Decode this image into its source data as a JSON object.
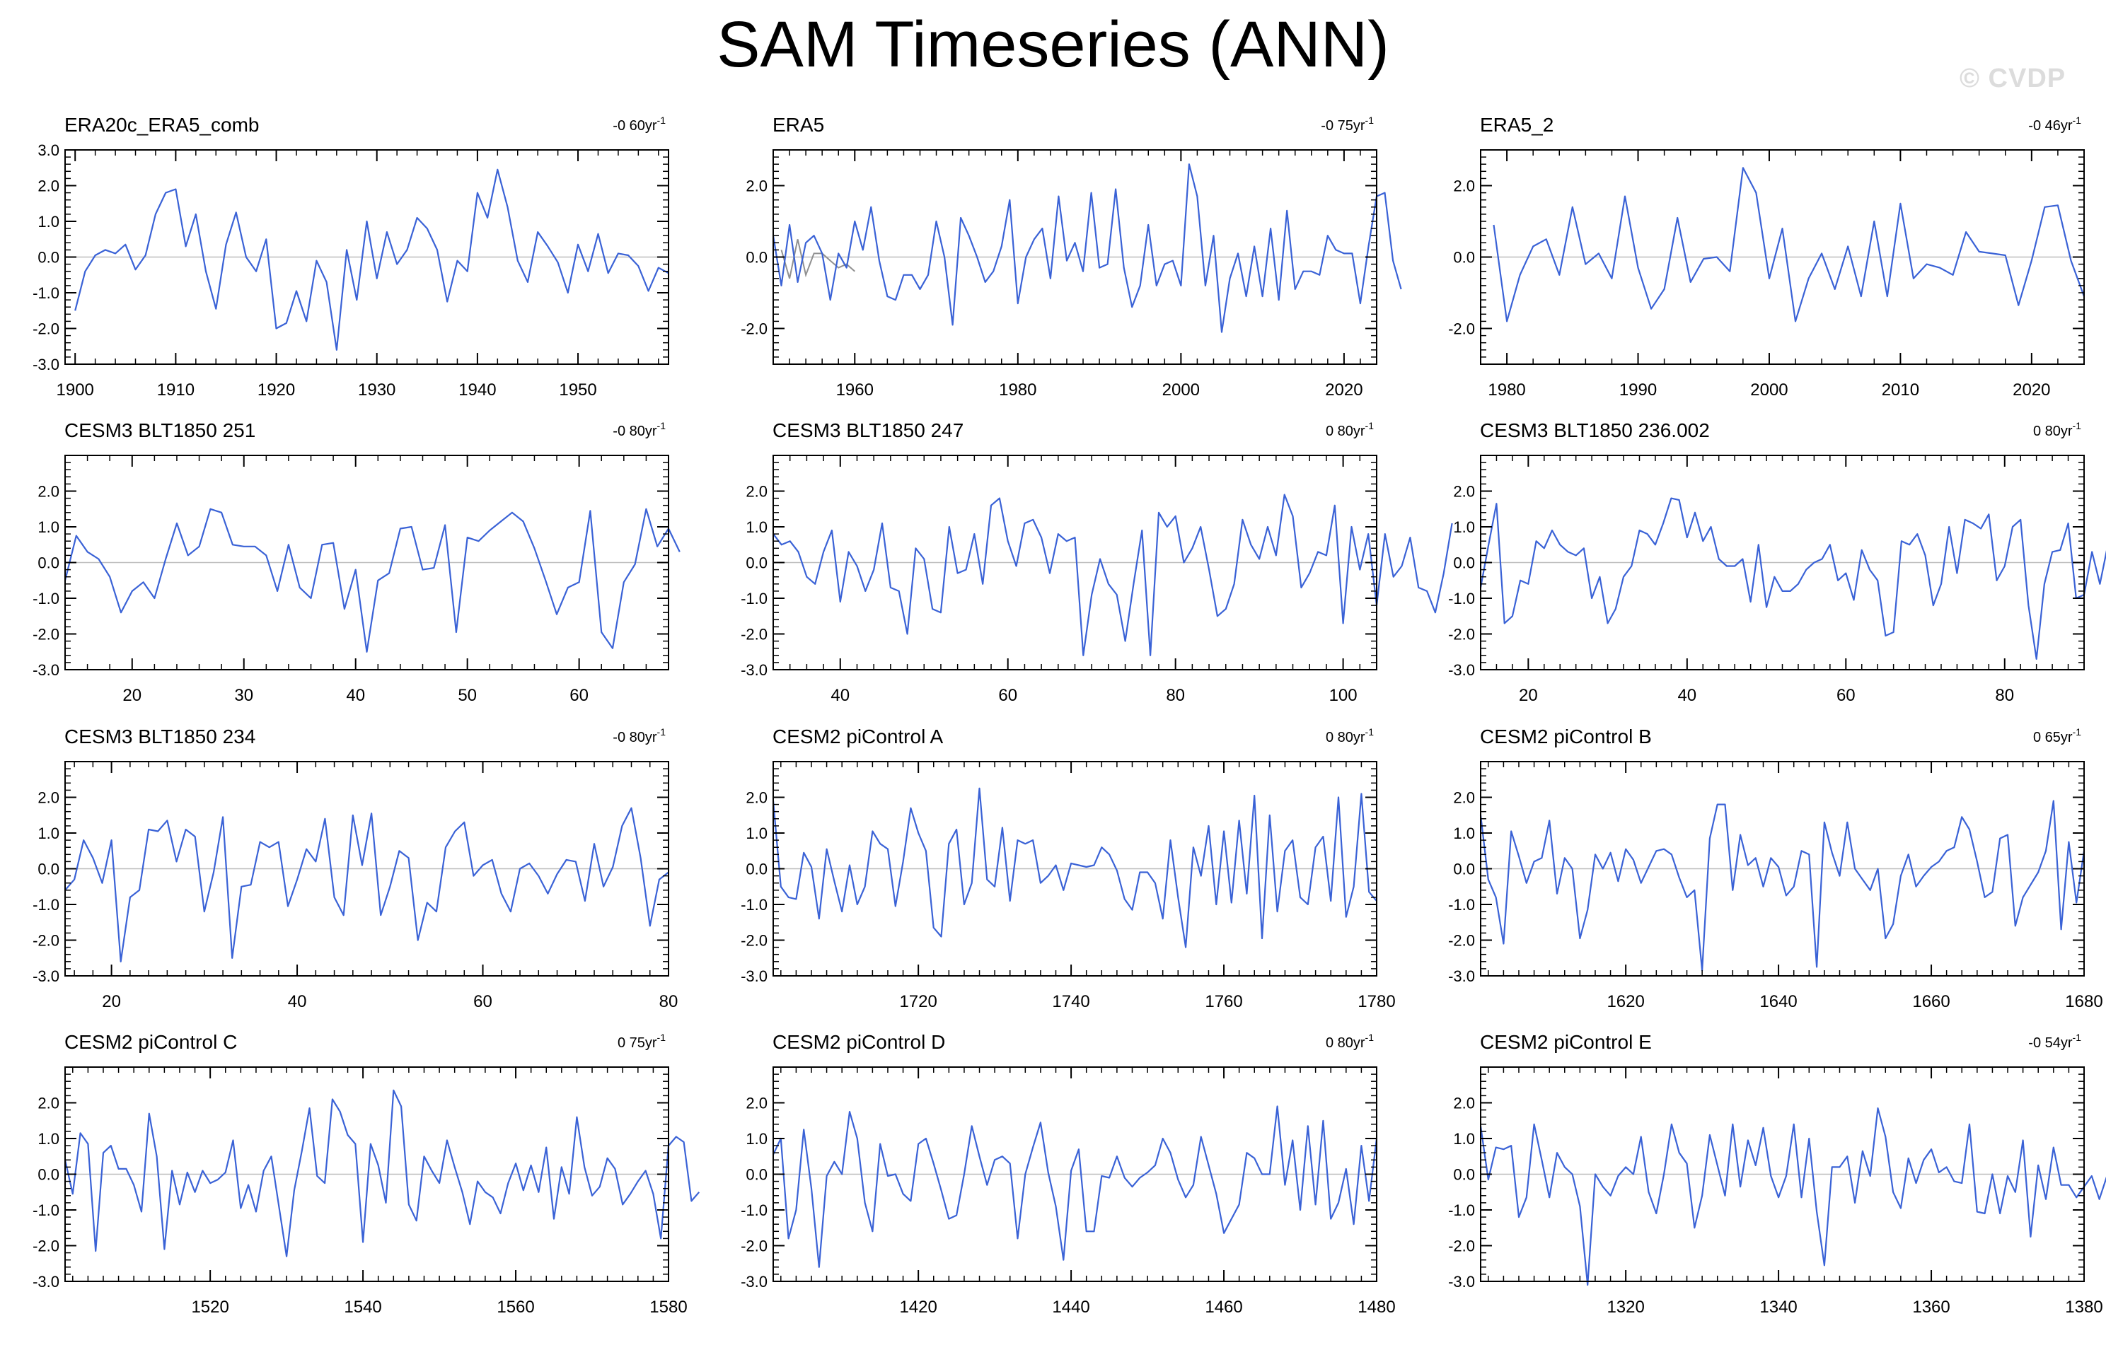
{
  "page": {
    "title": "SAM Timeseries (ANN)",
    "watermark": "© CVDP"
  },
  "style": {
    "line_color": "#3a62d6",
    "zero_color": "#bdbdbd",
    "axis_color": "#000000"
  },
  "chart_data": [
    {
      "type": "line",
      "title": "ERA20c_ERA5_comb",
      "trend_label": "-0 60yr",
      "xlim": [
        1899,
        1959
      ],
      "ylim": [
        -3,
        3
      ],
      "yticks": [
        -3,
        -2,
        -1,
        0,
        1,
        2,
        3
      ],
      "ytick_labels": [
        "-3.0",
        "-2.0",
        "-1.0",
        "0.0",
        "1.0",
        "2.0",
        "3.0"
      ],
      "xticks": [
        1900,
        1910,
        1920,
        1930,
        1940,
        1950
      ],
      "x_start": 1900,
      "values": [
        -1.5,
        -0.4,
        0.05,
        0.2,
        0.1,
        0.35,
        -0.35,
        0.05,
        1.2,
        1.8,
        1.9,
        0.3,
        1.2,
        -0.4,
        -1.45,
        0.35,
        1.25,
        0.0,
        -0.4,
        0.5,
        -2.0,
        -1.85,
        -0.95,
        -1.8,
        -0.1,
        -0.7,
        -2.6,
        0.2,
        -1.2,
        1.0,
        -0.6,
        0.7,
        -0.2,
        0.2,
        1.1,
        0.8,
        0.2,
        -1.25,
        -0.1,
        -0.4,
        1.8,
        1.1,
        2.45,
        1.4,
        -0.1,
        -0.7,
        0.7,
        0.3,
        -0.15,
        -1.0,
        0.35,
        -0.4,
        0.65,
        -0.45,
        0.1,
        0.05,
        -0.25,
        -0.95,
        -0.3,
        -0.45
      ]
    },
    {
      "type": "line",
      "title": "ERA5",
      "trend_label": "-0 75yr",
      "xlim": [
        1950,
        2024
      ],
      "ylim": [
        -3,
        3
      ],
      "yticks": [
        -2,
        0,
        2
      ],
      "ytick_labels": [
        "-2.0",
        "0.0",
        "2.0"
      ],
      "xticks": [
        1960,
        1980,
        2000,
        2020
      ],
      "x_start": 1950,
      "values": [
        0.6,
        -0.8,
        0.9,
        -0.7,
        0.4,
        0.6,
        0.1,
        -1.2,
        0.1,
        -0.3,
        1.0,
        0.2,
        1.4,
        -0.1,
        -1.1,
        -1.2,
        -0.5,
        -0.5,
        -0.9,
        -0.5,
        1.0,
        0.0,
        -1.9,
        1.1,
        0.6,
        0.0,
        -0.7,
        -0.4,
        0.3,
        1.6,
        -1.3,
        0.0,
        0.5,
        0.8,
        -0.6,
        1.7,
        -0.1,
        0.4,
        -0.4,
        1.8,
        -0.3,
        -0.2,
        1.9,
        -0.3,
        -1.4,
        -0.8,
        0.9,
        -0.8,
        -0.2,
        -0.1,
        -0.8,
        2.6,
        1.7,
        -0.8,
        0.6,
        -2.1,
        -0.6,
        0.1,
        -1.1,
        0.3,
        -1.1,
        0.8,
        -1.2,
        1.3,
        -0.9,
        -0.4,
        -0.4,
        -0.5,
        0.6,
        0.2,
        0.1,
        0.1,
        -1.3,
        0.3,
        1.7,
        1.8,
        -0.1,
        -0.9
      ],
      "overlay": {
        "color": "#909090",
        "x_start": 1951,
        "values": [
          0.2,
          -0.6,
          0.5,
          -0.5,
          0.1,
          0.1,
          -0.1,
          -0.3,
          -0.2,
          -0.4
        ]
      }
    },
    {
      "type": "line",
      "title": "ERA5_2",
      "trend_label": "-0 46yr",
      "xlim": [
        1978,
        2024
      ],
      "ylim": [
        -3,
        3
      ],
      "yticks": [
        -2,
        0,
        2
      ],
      "ytick_labels": [
        "-2.0",
        "0.0",
        "2.0"
      ],
      "xticks": [
        1980,
        1990,
        2000,
        2010,
        2020
      ],
      "x_start": 1979,
      "values": [
        0.9,
        -1.8,
        -0.5,
        0.3,
        0.5,
        -0.5,
        1.4,
        -0.2,
        0.1,
        -0.6,
        1.7,
        -0.3,
        -1.45,
        -0.9,
        1.1,
        -0.7,
        -0.05,
        0.0,
        -0.4,
        2.5,
        1.8,
        -0.6,
        0.8,
        -1.8,
        -0.6,
        0.1,
        -0.9,
        0.3,
        -1.1,
        1.0,
        -1.1,
        1.5,
        -0.6,
        -0.2,
        -0.3,
        -0.5,
        0.7,
        0.15,
        0.1,
        0.05,
        -1.35,
        -0.1,
        1.4,
        1.45,
        -0.1,
        -1.1
      ]
    },
    {
      "type": "line",
      "title": "CESM3 BLT1850 251",
      "trend_label": "-0 80yr",
      "xlim": [
        14,
        68
      ],
      "ylim": [
        -3,
        3
      ],
      "yticks": [
        -3,
        -2,
        -1,
        0,
        1,
        2
      ],
      "ytick_labels": [
        "-3.0",
        "-2.0",
        "-1.0",
        "0.0",
        "1.0",
        "2.0"
      ],
      "xticks": [
        20,
        30,
        40,
        50,
        60
      ],
      "x_start": 14,
      "values": [
        -0.5,
        0.75,
        0.3,
        0.1,
        -0.4,
        -1.4,
        -0.8,
        -0.55,
        -1.0,
        0.1,
        1.1,
        0.2,
        0.45,
        1.5,
        1.4,
        0.5,
        0.45,
        0.45,
        0.2,
        -0.8,
        0.5,
        -0.7,
        -1.0,
        0.5,
        0.55,
        -1.3,
        -0.2,
        -2.5,
        -0.5,
        -0.3,
        0.95,
        1.0,
        -0.2,
        -0.15,
        1.05,
        -1.95,
        0.7,
        0.6,
        0.9,
        1.15,
        1.4,
        1.15,
        0.4,
        -0.5,
        -1.45,
        -0.7,
        -0.55,
        1.45,
        -1.95,
        -2.4,
        -0.55,
        -0.05,
        1.5,
        0.45,
        0.95,
        0.3
      ]
    },
    {
      "type": "line",
      "title": "CESM3 BLT1850 247",
      "trend_label": "0 80yr",
      "xlim": [
        32,
        104
      ],
      "ylim": [
        -3,
        3
      ],
      "yticks": [
        -3,
        -2,
        -1,
        0,
        1,
        2
      ],
      "ytick_labels": [
        "-3.0",
        "-2.0",
        "-1.0",
        "0.0",
        "1.0",
        "2.0"
      ],
      "xticks": [
        40,
        60,
        80,
        100
      ],
      "x_start": 32,
      "values": [
        0.8,
        0.5,
        0.6,
        0.3,
        -0.4,
        -0.6,
        0.3,
        0.9,
        -1.1,
        0.3,
        -0.1,
        -0.8,
        -0.2,
        1.1,
        -0.7,
        -0.8,
        -2.0,
        0.4,
        0.1,
        -1.3,
        -1.4,
        1.0,
        -0.3,
        -0.2,
        0.8,
        -0.6,
        1.6,
        1.8,
        0.6,
        -0.1,
        1.1,
        1.2,
        0.7,
        -0.3,
        0.8,
        0.6,
        0.7,
        -2.6,
        -0.9,
        0.1,
        -0.6,
        -0.9,
        -2.2,
        -0.6,
        0.9,
        -2.6,
        1.4,
        1.0,
        1.3,
        0.0,
        0.4,
        1.0,
        -0.2,
        -1.5,
        -1.3,
        -0.6,
        1.2,
        0.5,
        0.1,
        1.0,
        0.2,
        1.9,
        1.3,
        -0.7,
        -0.3,
        0.3,
        0.2,
        1.6,
        -1.7,
        1.0,
        -0.2,
        0.8,
        -1.2,
        0.8,
        -0.4,
        -0.1,
        0.7,
        -0.7,
        -0.8,
        -1.4,
        -0.3,
        1.1
      ]
    },
    {
      "type": "line",
      "title": "CESM3 BLT1850 236.002",
      "trend_label": "0 80yr",
      "xlim": [
        14,
        90
      ],
      "ylim": [
        -3,
        3
      ],
      "yticks": [
        -3,
        -2,
        -1,
        0,
        1,
        2
      ],
      "ytick_labels": [
        "-3.0",
        "-2.0",
        "-1.0",
        "0.0",
        "1.0",
        "2.0"
      ],
      "xticks": [
        20,
        40,
        60,
        80
      ],
      "x_start": 14,
      "values": [
        -0.7,
        0.5,
        1.65,
        -1.7,
        -1.5,
        -0.5,
        -0.6,
        0.6,
        0.4,
        0.9,
        0.5,
        0.3,
        0.2,
        0.4,
        -1.0,
        -0.4,
        -1.7,
        -1.3,
        -0.4,
        -0.1,
        0.9,
        0.8,
        0.5,
        1.1,
        1.8,
        1.75,
        0.7,
        1.4,
        0.6,
        1.0,
        0.1,
        -0.1,
        -0.1,
        0.1,
        -1.1,
        0.5,
        -1.25,
        -0.4,
        -0.8,
        -0.8,
        -0.6,
        -0.2,
        0.0,
        0.1,
        0.5,
        -0.5,
        -0.3,
        -1.05,
        0.35,
        -0.2,
        -0.5,
        -2.05,
        -1.95,
        0.6,
        0.5,
        0.8,
        0.2,
        -1.2,
        -0.6,
        1.0,
        -0.3,
        1.2,
        1.1,
        0.95,
        1.35,
        -0.5,
        -0.1,
        1.0,
        1.2,
        -1.2,
        -2.7,
        -0.6,
        0.3,
        0.35,
        1.1,
        -1.0,
        -0.9,
        0.3,
        -0.6,
        0.5,
        1.3,
        0.7
      ]
    },
    {
      "type": "line",
      "title": "CESM3 BLT1850 234",
      "trend_label": "-0 80yr",
      "xlim": [
        15,
        80
      ],
      "ylim": [
        -3,
        3
      ],
      "yticks": [
        -3,
        -2,
        -1,
        0,
        1,
        2
      ],
      "ytick_labels": [
        "-3.0",
        "-2.0",
        "-1.0",
        "0.0",
        "1.0",
        "2.0"
      ],
      "xticks": [
        20,
        40,
        60,
        80
      ],
      "x_start": 15,
      "values": [
        -0.6,
        -0.3,
        0.8,
        0.3,
        -0.4,
        0.8,
        -2.6,
        -0.8,
        -0.6,
        1.1,
        1.05,
        1.35,
        0.2,
        1.1,
        0.9,
        -1.2,
        -0.1,
        1.45,
        -2.5,
        -0.5,
        -0.45,
        0.75,
        0.6,
        0.75,
        -1.05,
        -0.3,
        0.55,
        0.2,
        1.4,
        -0.8,
        -1.3,
        1.5,
        0.1,
        1.55,
        -1.3,
        -0.5,
        0.5,
        0.3,
        -2.0,
        -0.95,
        -1.2,
        0.6,
        1.05,
        1.3,
        -0.2,
        0.1,
        0.25,
        -0.7,
        -1.2,
        0.0,
        0.15,
        -0.2,
        -0.7,
        -0.15,
        0.25,
        0.2,
        -0.9,
        0.7,
        -0.5,
        0.05,
        1.2,
        1.7,
        0.3,
        -1.6,
        -0.3,
        -0.1
      ]
    },
    {
      "type": "line",
      "title": "CESM2 piControl A",
      "trend_label": "0 80yr",
      "xlim": [
        1701,
        1780
      ],
      "ylim": [
        -3,
        3
      ],
      "yticks": [
        -3,
        -2,
        -1,
        0,
        1,
        2
      ],
      "ytick_labels": [
        "-3.0",
        "-2.0",
        "-1.0",
        "0.0",
        "1.0",
        "2.0"
      ],
      "xticks": [
        1720,
        1740,
        1760,
        1780
      ],
      "x_start": 1701,
      "values": [
        1.9,
        -0.5,
        -0.8,
        -0.85,
        0.45,
        0.05,
        -1.4,
        0.55,
        -0.35,
        -1.2,
        0.1,
        -1.0,
        -0.5,
        1.05,
        0.7,
        0.55,
        -1.05,
        0.2,
        1.7,
        1.0,
        0.5,
        -1.65,
        -1.9,
        0.7,
        1.1,
        -1.0,
        -0.4,
        2.25,
        -0.3,
        -0.5,
        1.15,
        -0.9,
        0.8,
        0.7,
        0.8,
        -0.4,
        -0.2,
        0.1,
        -0.6,
        0.15,
        0.1,
        0.05,
        0.1,
        0.6,
        0.4,
        -0.05,
        -0.85,
        -1.15,
        -0.1,
        -0.1,
        -0.4,
        -1.4,
        0.8,
        -0.8,
        -2.2,
        0.6,
        -0.2,
        1.2,
        -1.0,
        1.05,
        -0.95,
        1.35,
        -0.7,
        2.05,
        -1.95,
        1.5,
        -1.2,
        0.5,
        0.8,
        -0.8,
        -1.0,
        0.6,
        0.9,
        -0.9,
        2.0,
        -1.35,
        -0.5,
        2.1,
        -0.65,
        -0.9
      ]
    },
    {
      "type": "line",
      "title": "CESM2 piControl B",
      "trend_label": "0 65yr",
      "xlim": [
        1601,
        1680
      ],
      "ylim": [
        -3,
        3
      ],
      "yticks": [
        -3,
        -2,
        -1,
        0,
        1,
        2
      ],
      "ytick_labels": [
        "-3.0",
        "-2.0",
        "-1.0",
        "0.0",
        "1.0",
        "2.0"
      ],
      "xticks": [
        1620,
        1640,
        1660,
        1680
      ],
      "x_start": 1601,
      "values": [
        1.5,
        -0.3,
        -0.8,
        -2.1,
        1.05,
        0.35,
        -0.4,
        0.2,
        0.3,
        1.35,
        -0.7,
        0.3,
        0.0,
        -1.95,
        -1.15,
        0.4,
        0.0,
        0.45,
        -0.35,
        0.55,
        0.25,
        -0.4,
        0.05,
        0.5,
        0.55,
        0.4,
        -0.25,
        -0.8,
        -0.6,
        -2.85,
        0.85,
        1.8,
        1.8,
        -0.6,
        0.95,
        0.1,
        0.3,
        -0.5,
        0.3,
        0.05,
        -0.75,
        -0.5,
        0.5,
        0.4,
        -2.75,
        1.3,
        0.45,
        -0.2,
        1.3,
        0.0,
        -0.3,
        -0.6,
        0.0,
        -1.95,
        -1.55,
        -0.2,
        0.4,
        -0.5,
        -0.2,
        0.05,
        0.2,
        0.5,
        0.6,
        1.45,
        1.1,
        0.2,
        -0.8,
        -0.65,
        0.85,
        0.95,
        -1.6,
        -0.8,
        -0.45,
        -0.1,
        0.5,
        1.9,
        -1.7,
        0.75,
        -0.95,
        0.5
      ]
    },
    {
      "type": "line",
      "title": "CESM2 piControl C",
      "trend_label": "0 75yr",
      "xlim": [
        1501,
        1580
      ],
      "ylim": [
        -3,
        3
      ],
      "yticks": [
        -3,
        -2,
        -1,
        0,
        1,
        2
      ],
      "ytick_labels": [
        "-3.0",
        "-2.0",
        "-1.0",
        "0.0",
        "1.0",
        "2.0"
      ],
      "xticks": [
        1520,
        1540,
        1560,
        1580
      ],
      "x_start": 1501,
      "values": [
        0.4,
        -0.55,
        1.15,
        0.85,
        -2.15,
        0.6,
        0.8,
        0.15,
        0.15,
        -0.3,
        -1.05,
        1.7,
        0.5,
        -2.1,
        0.1,
        -0.85,
        0.05,
        -0.5,
        0.1,
        -0.25,
        -0.15,
        0.05,
        0.95,
        -0.95,
        -0.3,
        -1.05,
        0.1,
        0.5,
        -0.9,
        -2.3,
        -0.45,
        0.65,
        1.85,
        -0.05,
        -0.25,
        2.1,
        1.75,
        1.1,
        0.85,
        -1.9,
        0.85,
        0.25,
        -0.8,
        2.35,
        1.9,
        -0.85,
        -1.3,
        0.5,
        0.1,
        -0.25,
        0.95,
        0.2,
        -0.5,
        -1.4,
        -0.2,
        -0.5,
        -0.65,
        -1.1,
        -0.25,
        0.3,
        -0.45,
        0.25,
        -0.5,
        0.75,
        -1.25,
        0.2,
        -0.55,
        1.6,
        0.2,
        -0.6,
        -0.35,
        0.45,
        0.15,
        -0.85,
        -0.55,
        -0.2,
        0.1,
        -0.55,
        -1.8,
        0.8,
        1.05,
        0.9,
        -0.75,
        -0.5
      ]
    },
    {
      "type": "line",
      "title": "CESM2 piControl D",
      "trend_label": "0 80yr",
      "xlim": [
        1401,
        1480
      ],
      "ylim": [
        -3,
        3
      ],
      "yticks": [
        -3,
        -2,
        -1,
        0,
        1,
        2
      ],
      "ytick_labels": [
        "-3.0",
        "-2.0",
        "-1.0",
        "0.0",
        "1.0",
        "2.0"
      ],
      "xticks": [
        1420,
        1440,
        1460,
        1480
      ],
      "x_start": 1401,
      "values": [
        0.55,
        1.0,
        -1.8,
        -1.0,
        1.25,
        -0.4,
        -2.6,
        -0.05,
        0.35,
        0.0,
        1.75,
        1.0,
        -0.8,
        -1.6,
        0.85,
        -0.05,
        0.0,
        -0.55,
        -0.75,
        0.85,
        1.0,
        0.3,
        -0.45,
        -1.25,
        -1.15,
        0.0,
        1.35,
        0.5,
        -0.3,
        0.4,
        0.5,
        0.3,
        -1.8,
        0.0,
        0.75,
        1.45,
        0.05,
        -0.9,
        -2.4,
        0.1,
        0.7,
        -1.6,
        -1.6,
        -0.05,
        -0.1,
        0.5,
        -0.1,
        -0.35,
        -0.1,
        0.05,
        0.25,
        1.0,
        0.6,
        -0.15,
        -0.65,
        -0.3,
        1.05,
        0.25,
        -0.55,
        -1.65,
        -1.25,
        -0.85,
        0.6,
        0.45,
        0.0,
        0.0,
        1.9,
        -0.3,
        0.95,
        -1.0,
        1.35,
        -0.85,
        1.5,
        -1.25,
        -0.8,
        0.15,
        -1.4,
        0.8,
        -0.75,
        1.0
      ]
    },
    {
      "type": "line",
      "title": "CESM2 piControl E",
      "trend_label": "-0 54yr",
      "xlim": [
        1301,
        1380
      ],
      "ylim": [
        -3,
        3
      ],
      "yticks": [
        -3,
        -2,
        -1,
        0,
        1,
        2
      ],
      "ytick_labels": [
        "-3.0",
        "-2.0",
        "-1.0",
        "0.0",
        "1.0",
        "2.0"
      ],
      "xticks": [
        1320,
        1340,
        1360,
        1380
      ],
      "x_start": 1301,
      "values": [
        1.35,
        -0.15,
        0.75,
        0.7,
        0.8,
        -1.2,
        -0.65,
        1.4,
        0.4,
        -0.65,
        0.6,
        0.2,
        0.0,
        -0.9,
        -3.1,
        0.0,
        -0.35,
        -0.6,
        -0.05,
        0.2,
        0.0,
        1.05,
        -0.5,
        -1.1,
        0.0,
        1.4,
        0.6,
        0.3,
        -1.5,
        -0.6,
        1.1,
        0.25,
        -0.6,
        1.4,
        -0.35,
        0.95,
        0.25,
        1.3,
        -0.05,
        -0.65,
        -0.05,
        1.4,
        -0.65,
        1.0,
        -1.05,
        -2.55,
        0.2,
        0.2,
        0.5,
        -0.8,
        0.65,
        -0.05,
        1.85,
        1.05,
        -0.5,
        -0.95,
        0.45,
        -0.25,
        0.4,
        0.7,
        0.05,
        0.2,
        -0.2,
        -0.25,
        1.4,
        -1.05,
        -1.1,
        0.0,
        -1.1,
        -0.05,
        -0.5,
        0.95,
        -1.75,
        0.25,
        -0.7,
        0.75,
        -0.3,
        -0.3,
        -0.65,
        -0.35,
        -0.05,
        -0.7,
        -0.05,
        0.6,
        1.25,
        0.35,
        -0.8,
        -1.0
      ]
    }
  ]
}
